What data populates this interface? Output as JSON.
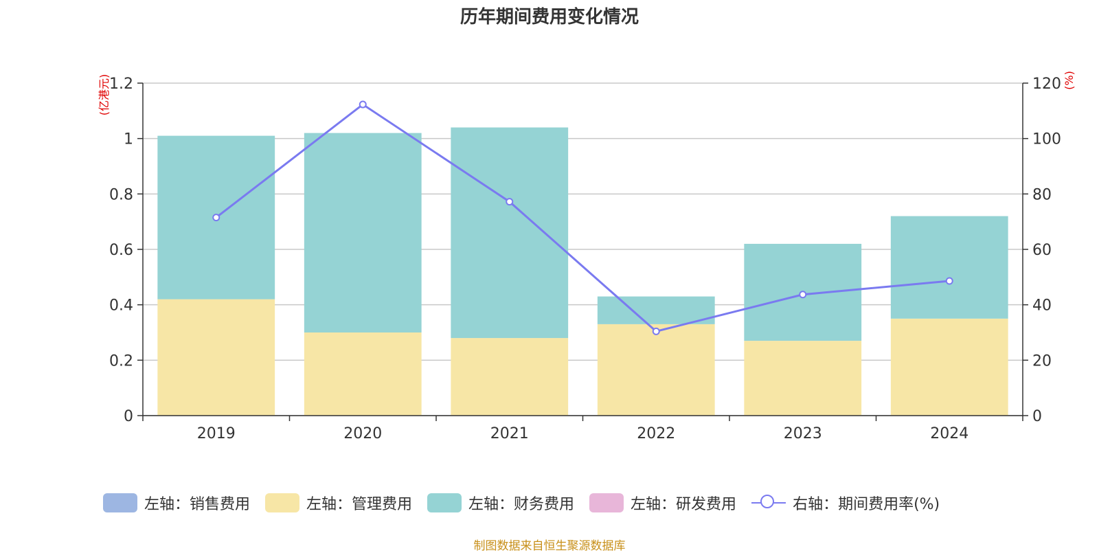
{
  "title": "历年期间费用变化情况",
  "footer": "制图数据来自恒生聚源数据库",
  "colors": {
    "sales": "#9db6e2",
    "admin": "#f7e6a6",
    "finance": "#95d3d4",
    "rnd": "#e8b6d9",
    "rate": "#7a7af0"
  },
  "legend": [
    {
      "label": "左轴：销售费用",
      "color_key": "sales",
      "type": "box"
    },
    {
      "label": "左轴：管理费用",
      "color_key": "admin",
      "type": "box"
    },
    {
      "label": "左轴：财务费用",
      "color_key": "finance",
      "type": "box"
    },
    {
      "label": "左轴：研发费用",
      "color_key": "rnd",
      "type": "box"
    },
    {
      "label": "右轴：期间费用率(%)",
      "color_key": "rate",
      "type": "line"
    }
  ],
  "chart_data": {
    "type": "bar",
    "stacked": true,
    "categories": [
      "2019",
      "2020",
      "2021",
      "2022",
      "2023",
      "2024"
    ],
    "series": [
      {
        "name": "左轴：销售费用",
        "axis": "left",
        "values": [
          0,
          0,
          0,
          0,
          0,
          0
        ]
      },
      {
        "name": "左轴：管理费用",
        "axis": "left",
        "values": [
          0.42,
          0.3,
          0.28,
          0.33,
          0.27,
          0.35
        ]
      },
      {
        "name": "左轴：财务费用",
        "axis": "left",
        "values": [
          0.59,
          0.72,
          0.76,
          0.1,
          0.35,
          0.37
        ]
      },
      {
        "name": "左轴：研发费用",
        "axis": "left",
        "values": [
          0,
          0,
          0,
          0,
          0,
          0
        ]
      },
      {
        "name": "右轴：期间费用率(%)",
        "axis": "right",
        "type": "line",
        "values": [
          71.5,
          112.3,
          77.2,
          30.4,
          43.7,
          48.6
        ]
      }
    ],
    "left_axis": {
      "label": "(亿港元)",
      "ylim": [
        0,
        1.2
      ],
      "ticks": [
        0,
        0.2,
        0.4,
        0.6,
        0.8,
        1,
        1.2
      ],
      "tick_labels": [
        "0",
        "0.2",
        "0.4",
        "0.6",
        "0.8",
        "1",
        "1.2"
      ]
    },
    "right_axis": {
      "label": "(%)",
      "ylim": [
        0,
        120
      ],
      "ticks": [
        0,
        20,
        40,
        60,
        80,
        100,
        120
      ],
      "tick_labels": [
        "0",
        "20",
        "40",
        "60",
        "80",
        "100",
        "120"
      ]
    },
    "grid": true,
    "legend_position": "bottom"
  }
}
